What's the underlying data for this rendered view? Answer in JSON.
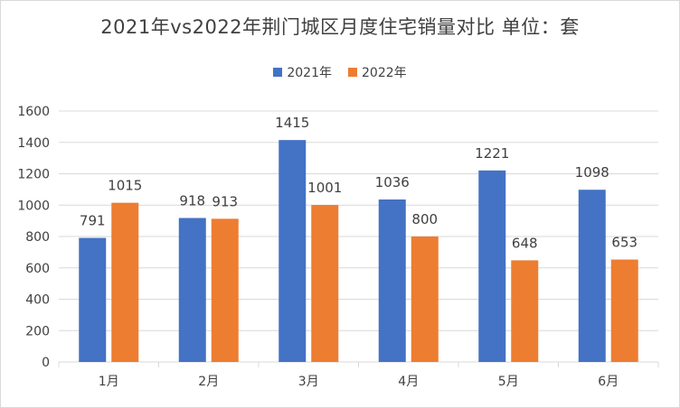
{
  "colors": {
    "series2021": "#4472c4",
    "series2022": "#ed7d31",
    "grid": "#d9d9d9",
    "text": "#404040"
  },
  "chart_data": {
    "type": "bar",
    "title": "2021年vs2022年荆门城区月度住宅销量对比 单位：套",
    "categories": [
      "1月",
      "2月",
      "3月",
      "4月",
      "5月",
      "6月"
    ],
    "series": [
      {
        "name": "2021年",
        "values": [
          791,
          918,
          1415,
          1036,
          1221,
          1098
        ]
      },
      {
        "name": "2022年",
        "values": [
          1015,
          913,
          1001,
          800,
          648,
          653
        ]
      }
    ],
    "ylim": [
      0,
      1600
    ],
    "yticks": [
      0,
      200,
      400,
      600,
      800,
      1000,
      1200,
      1400,
      1600
    ],
    "grid": true,
    "legend": "top-center"
  }
}
